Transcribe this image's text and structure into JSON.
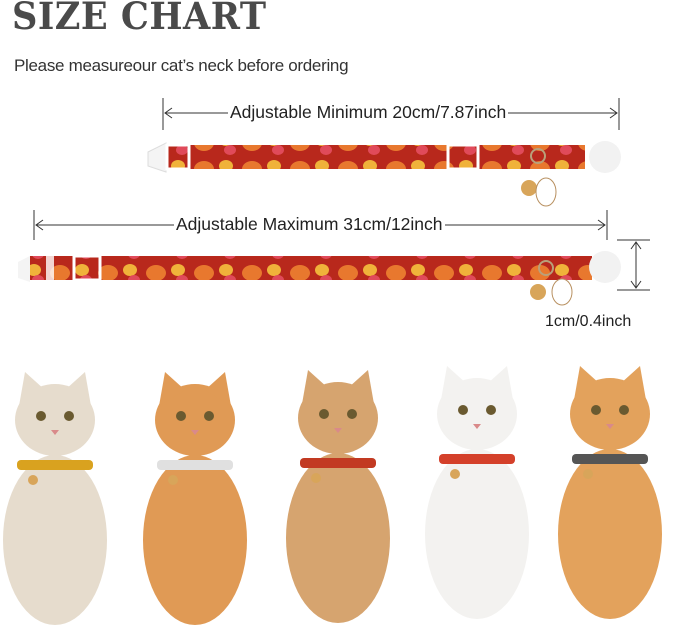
{
  "title": "SIZE CHART",
  "subtitle": "Please measureour cat’s neck before ordering",
  "dimensions": {
    "minimum_label": "Adjustable Minimum 20cm/7.87inch",
    "maximum_label": "Adjustable Maximum 31cm/12inch",
    "width_label": "1cm/0.4inch"
  },
  "colors": {
    "collar_red": "#b8281c",
    "pattern_orange": "#e8782e",
    "pattern_yellow": "#f0b23a",
    "title_gray": "#4a4a4a"
  },
  "cats": [
    {
      "name": "cream-cat",
      "fur": "#e6dccd",
      "collar": "#d9a21f"
    },
    {
      "name": "orange-cat",
      "fur": "#e09a55",
      "collar": "#e0e0e0"
    },
    {
      "name": "tan-cat",
      "fur": "#d6a46f",
      "collar": "#c23a22"
    },
    {
      "name": "white-cat",
      "fur": "#f3f2f0",
      "collar": "#d4402a"
    },
    {
      "name": "orange-cat-winking",
      "fur": "#e3a25c",
      "collar": "#555555"
    }
  ]
}
